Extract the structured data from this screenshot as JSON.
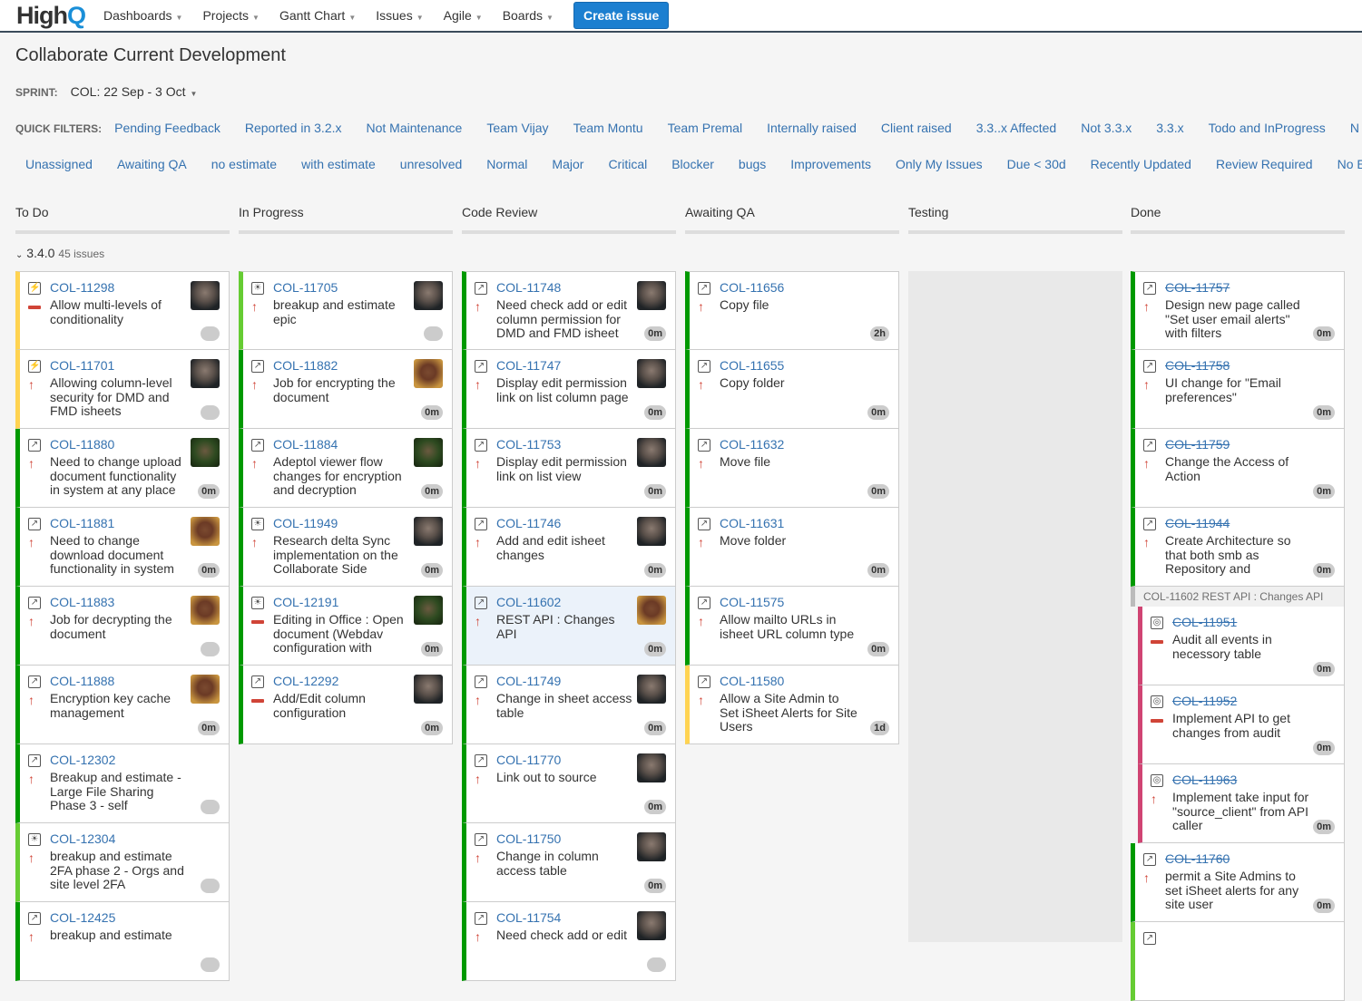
{
  "header": {
    "logo": "HighQ",
    "nav": [
      "Dashboards",
      "Projects",
      "Gantt Chart",
      "Issues",
      "Agile",
      "Boards"
    ],
    "create_label": "Create issue"
  },
  "board": {
    "title": "Collaborate Current Development",
    "sprint_label": "SPRINT:",
    "sprint_value": "COL: 22 Sep - 3 Oct",
    "quick_filters_label": "QUICK FILTERS:",
    "quick_filters_row1": [
      "Pending Feedback",
      "Reported in 3.2.x",
      "Not Maintenance",
      "Team Vijay",
      "Team Montu",
      "Team Premal",
      "Internally raised",
      "Client raised",
      "3.3..x Affected",
      "Not 3.3.x",
      "3.3.x",
      "Todo and InProgress",
      "N"
    ],
    "quick_filters_row2": [
      "Unassigned",
      "Awaiting QA",
      "no estimate",
      "with estimate",
      "unresolved",
      "Normal",
      "Major",
      "Critical",
      "Blocker",
      "bugs",
      "Improvements",
      "Only My Issues",
      "Due < 30d",
      "Recently Updated",
      "Review Required",
      "No E"
    ],
    "swimlane": {
      "name": "3.4.0",
      "count": "45 issues"
    }
  },
  "colors": {
    "green": "#009900",
    "yellow": "#ffd351",
    "lightgreen": "#66cc33",
    "pink": "#d04473",
    "link": "#3572b0"
  },
  "columns": [
    {
      "name": "To Do",
      "cards": [
        {
          "key": "COL-11298",
          "summary": "Allow multi-levels of conditionality",
          "type": "story",
          "prio": "minus",
          "est": "",
          "av": "dark",
          "c": "yellow"
        },
        {
          "key": "COL-11701",
          "summary": "Allowing column-level security for DMD and FMD isheets",
          "type": "story",
          "prio": "up",
          "est": "",
          "av": "dark",
          "c": "yellow"
        },
        {
          "key": "COL-11880",
          "summary": "Need to change upload document functionality in system at any place",
          "type": "improvement",
          "prio": "up",
          "est": "0m",
          "av": "grn",
          "c": "green"
        },
        {
          "key": "COL-11881",
          "summary": "Need to change download document functionality in system",
          "type": "improvement",
          "prio": "up",
          "est": "0m",
          "av": "tan",
          "c": "green"
        },
        {
          "key": "COL-11883",
          "summary": "Job for decrypting the document",
          "type": "improvement",
          "prio": "up",
          "est": "",
          "av": "tan",
          "c": "green"
        },
        {
          "key": "COL-11888",
          "summary": "Encryption key cache management",
          "type": "improvement",
          "prio": "up",
          "est": "0m",
          "av": "tan",
          "c": "green"
        },
        {
          "key": "COL-12302",
          "summary": "Breakup and estimate - Large File Sharing Phase 3 - self",
          "type": "improvement",
          "prio": "up",
          "est": "",
          "av": "",
          "c": "green"
        },
        {
          "key": "COL-12304",
          "summary": "breakup and estimate 2FA phase 2 - Orgs and site level 2FA",
          "type": "idea",
          "prio": "up",
          "est": "",
          "av": "",
          "c": "lightgreen"
        },
        {
          "key": "COL-12425",
          "summary": "breakup and estimate",
          "type": "improvement",
          "prio": "up",
          "est": "",
          "av": "",
          "c": "green"
        }
      ]
    },
    {
      "name": "In Progress",
      "cards": [
        {
          "key": "COL-11705",
          "summary": "breakup and estimate epic",
          "type": "idea",
          "prio": "up",
          "est": "",
          "av": "dark",
          "c": "lightgreen"
        },
        {
          "key": "COL-11882",
          "summary": "Job for encrypting the document",
          "type": "improvement",
          "prio": "up",
          "est": "0m",
          "av": "tan",
          "c": "green"
        },
        {
          "key": "COL-11884",
          "summary": "Adeptol viewer flow changes for encryption and decryption",
          "type": "improvement",
          "prio": "up",
          "est": "0m",
          "av": "grn",
          "c": "green"
        },
        {
          "key": "COL-11949",
          "summary": "Research delta Sync implementation on the Collaborate Side",
          "type": "idea",
          "prio": "up",
          "est": "0m",
          "av": "dark",
          "c": "green"
        },
        {
          "key": "COL-12191",
          "summary": "Editing in Office : Open document (Webdav configuration with",
          "type": "idea",
          "prio": "minus",
          "est": "0m",
          "av": "grn",
          "c": "green"
        },
        {
          "key": "COL-12292",
          "summary": "Add/Edit column configuration",
          "type": "improvement",
          "prio": "minus",
          "est": "0m",
          "av": "dark",
          "c": "green"
        }
      ]
    },
    {
      "name": "Code Review",
      "cards": [
        {
          "key": "COL-11748",
          "summary": "Need check add or edit column permission for DMD and FMD isheet",
          "type": "improvement",
          "prio": "up",
          "est": "0m",
          "av": "dark",
          "c": "green"
        },
        {
          "key": "COL-11747",
          "summary": "Display edit permission link on list column page",
          "type": "improvement",
          "prio": "up",
          "est": "0m",
          "av": "dark",
          "c": "green"
        },
        {
          "key": "COL-11753",
          "summary": "Display edit permission link on list view",
          "type": "improvement",
          "prio": "up",
          "est": "0m",
          "av": "dark",
          "c": "green"
        },
        {
          "key": "COL-11746",
          "summary": "Add and edit isheet changes",
          "type": "improvement",
          "prio": "up",
          "est": "0m",
          "av": "dark",
          "c": "green"
        },
        {
          "key": "COL-11602",
          "summary": "REST API : Changes API",
          "type": "improvement",
          "prio": "up",
          "est": "0m",
          "av": "tan",
          "c": "green",
          "hl": true
        },
        {
          "key": "COL-11749",
          "summary": "Change in sheet access table",
          "type": "improvement",
          "prio": "up",
          "est": "0m",
          "av": "dark",
          "c": "green"
        },
        {
          "key": "COL-11770",
          "summary": "Link out to source",
          "type": "improvement",
          "prio": "up",
          "est": "0m",
          "av": "dark",
          "c": "green"
        },
        {
          "key": "COL-11750",
          "summary": "Change in column access table",
          "type": "improvement",
          "prio": "up",
          "est": "0m",
          "av": "dark",
          "c": "green"
        },
        {
          "key": "COL-11754",
          "summary": "Need check add or edit",
          "type": "improvement",
          "prio": "up",
          "est": "",
          "av": "dark",
          "c": "green"
        }
      ]
    },
    {
      "name": "Awaiting QA",
      "cards": [
        {
          "key": "COL-11656",
          "summary": "Copy file",
          "type": "improvement",
          "prio": "up",
          "est": "2h",
          "av": "",
          "c": "green"
        },
        {
          "key": "COL-11655",
          "summary": "Copy folder",
          "type": "improvement",
          "prio": "up",
          "est": "0m",
          "av": "",
          "c": "green"
        },
        {
          "key": "COL-11632",
          "summary": "Move file",
          "type": "improvement",
          "prio": "up",
          "est": "0m",
          "av": "",
          "c": "green"
        },
        {
          "key": "COL-11631",
          "summary": "Move folder",
          "type": "improvement",
          "prio": "up",
          "est": "0m",
          "av": "",
          "c": "green"
        },
        {
          "key": "COL-11575",
          "summary": "Allow mailto URLs in isheet URL column type",
          "type": "improvement",
          "prio": "up",
          "est": "0m",
          "av": "",
          "c": "green"
        },
        {
          "key": "COL-11580",
          "summary": "Allow a Site Admin to Set iSheet Alerts for Site Users",
          "type": "improvement",
          "prio": "up",
          "est": "1d",
          "av": "",
          "c": "yellow"
        }
      ]
    },
    {
      "name": "Testing",
      "cards": []
    },
    {
      "name": "Done",
      "cards": [
        {
          "key": "COL-11757",
          "summary": "Design new page called \"Set user email alerts\" with filters",
          "type": "improvement",
          "prio": "up",
          "est": "0m",
          "av": "",
          "c": "green",
          "done": true
        },
        {
          "key": "COL-11758",
          "summary": "UI change for \"Email preferences\"",
          "type": "improvement",
          "prio": "up",
          "est": "0m",
          "av": "",
          "c": "green",
          "done": true
        },
        {
          "key": "COL-11759",
          "summary": "Change the Access of Action",
          "type": "improvement",
          "prio": "up",
          "est": "0m",
          "av": "",
          "c": "green",
          "done": true
        },
        {
          "key": "COL-11944",
          "summary": "Create Architecture so that both smb as Repository and",
          "type": "improvement",
          "prio": "up",
          "est": "0m",
          "av": "",
          "c": "green",
          "done": true
        },
        {
          "parent": "COL-11602  REST API : Changes API"
        },
        {
          "key": "COL-11951",
          "summary": "Audit all events in necessory table",
          "type": "subtask",
          "prio": "minus",
          "est": "0m",
          "av": "",
          "c": "pink",
          "done": true,
          "sub": true
        },
        {
          "key": "COL-11952",
          "summary": "Implement API to get changes from audit",
          "type": "subtask",
          "prio": "minus",
          "est": "0m",
          "av": "",
          "c": "pink",
          "done": true,
          "sub": true
        },
        {
          "key": "COL-11963",
          "summary": "Implement take input for \"source_client\" from API caller",
          "type": "subtask",
          "prio": "up",
          "est": "0m",
          "av": "",
          "c": "pink",
          "done": true,
          "sub": true
        },
        {
          "key": "COL-11760",
          "summary": "permit a Site Admins to set iSheet alerts for any site user",
          "type": "improvement",
          "prio": "up",
          "est": "0m",
          "av": "",
          "c": "green",
          "done": true
        },
        {
          "key": "",
          "summary": "",
          "type": "improvement",
          "prio": "",
          "est": "",
          "av": "",
          "c": "lightgreen"
        }
      ]
    }
  ]
}
